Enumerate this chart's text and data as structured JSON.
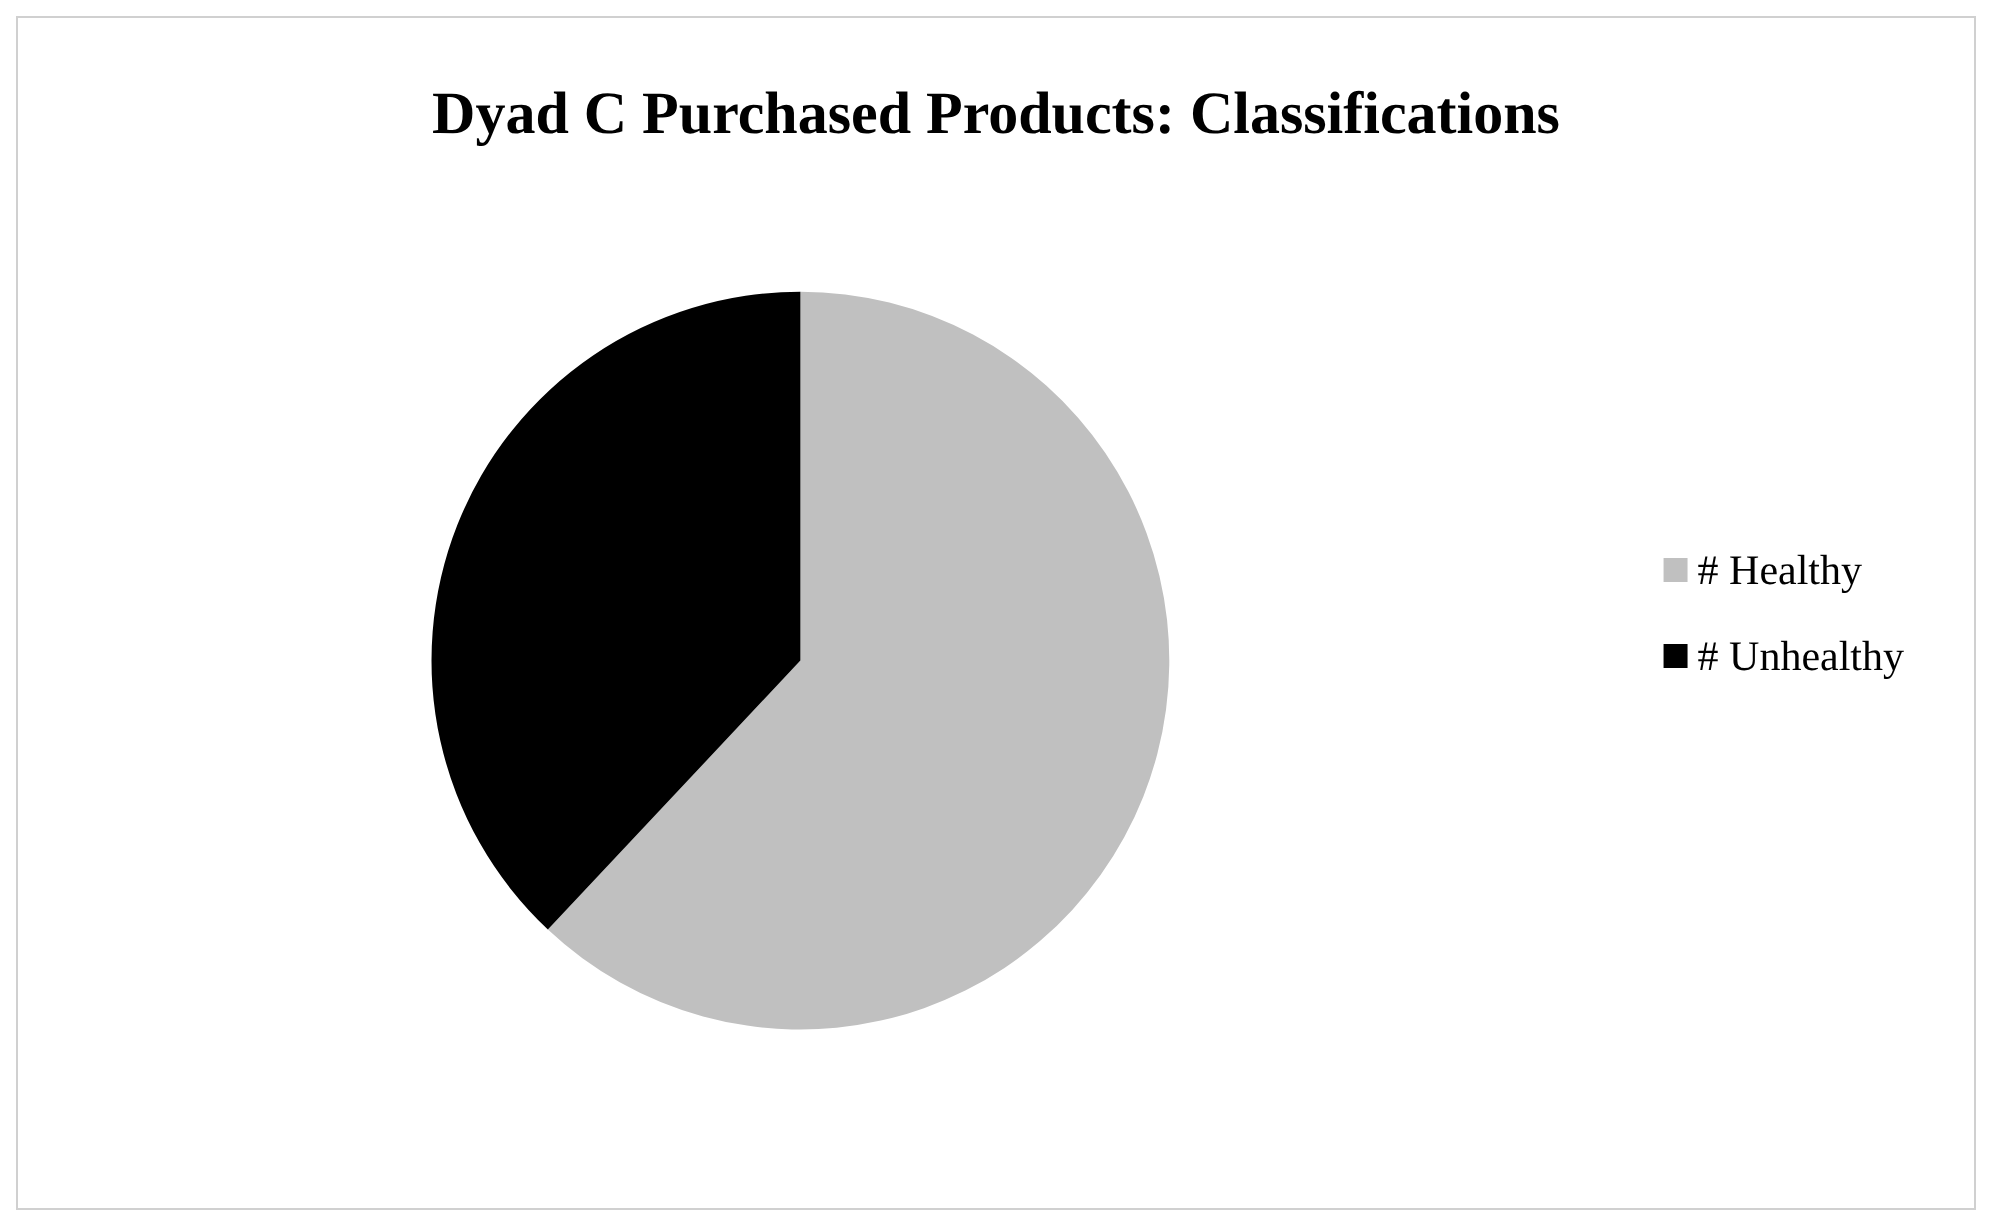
{
  "chart_data": {
    "type": "pie",
    "title": "Dyad C Purchased Products: Classifications",
    "categories": [
      "# Healthy",
      "# Unhealthy"
    ],
    "values": [
      62,
      38
    ],
    "colors": [
      "#c0c0c0",
      "#000000"
    ],
    "legend": "right"
  }
}
